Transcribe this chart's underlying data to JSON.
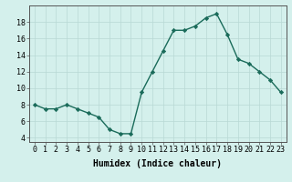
{
  "x": [
    0,
    1,
    2,
    3,
    4,
    5,
    6,
    7,
    8,
    9,
    10,
    11,
    12,
    13,
    14,
    15,
    16,
    17,
    18,
    19,
    20,
    21,
    22,
    23
  ],
  "y": [
    8.0,
    7.5,
    7.5,
    8.0,
    7.5,
    7.0,
    6.5,
    5.0,
    4.5,
    4.5,
    9.5,
    12.0,
    14.5,
    17.0,
    17.0,
    17.5,
    18.5,
    19.0,
    16.5,
    13.5,
    13.0,
    12.0,
    11.0,
    9.5
  ],
  "line_color": "#1a6b5a",
  "marker": "D",
  "marker_size": 2.2,
  "bg_color": "#d4f0ec",
  "grid_color": "#b8d8d4",
  "xlabel": "Humidex (Indice chaleur)",
  "xlim": [
    -0.5,
    23.5
  ],
  "ylim": [
    3.5,
    20
  ],
  "yticks": [
    4,
    6,
    8,
    10,
    12,
    14,
    16,
    18
  ],
  "xtick_labels": [
    "0",
    "1",
    "2",
    "3",
    "4",
    "5",
    "6",
    "7",
    "8",
    "9",
    "10",
    "11",
    "12",
    "13",
    "14",
    "15",
    "16",
    "17",
    "18",
    "19",
    "20",
    "21",
    "22",
    "23"
  ],
  "xlabel_fontsize": 7,
  "tick_fontsize": 6,
  "linewidth": 1.0
}
